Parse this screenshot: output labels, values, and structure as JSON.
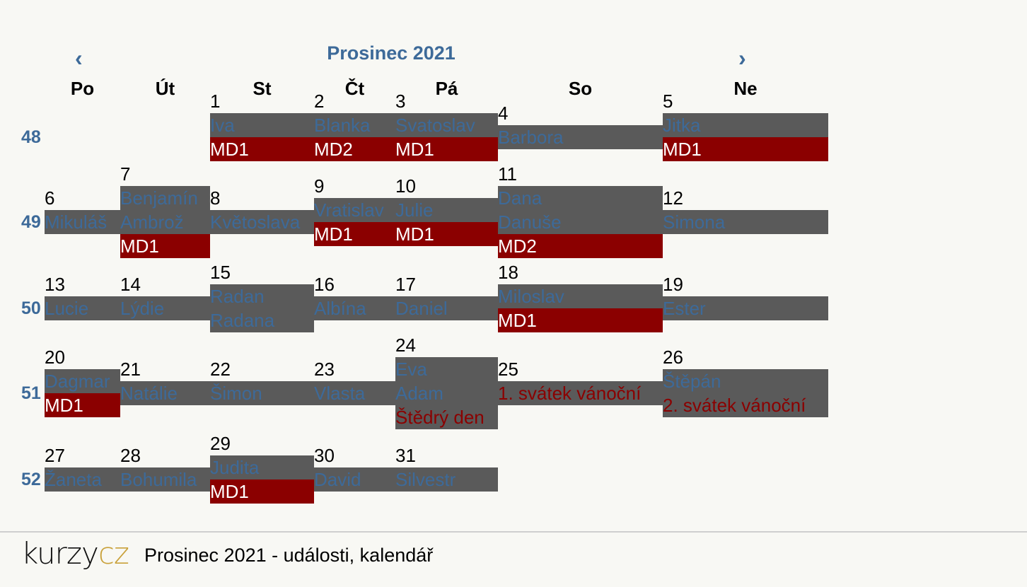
{
  "header": {
    "prev_icon": "‹",
    "next_icon": "›",
    "month_title": "Prosinec 2021"
  },
  "days_of_week": [
    "Po",
    "Út",
    "St",
    "Čt",
    "Pá",
    "So",
    "Ne"
  ],
  "weeks": [
    {
      "number": "48",
      "days": [
        null,
        null,
        {
          "date": "1",
          "names": [
            "Iva"
          ],
          "events": [
            "MD1"
          ]
        },
        {
          "date": "2",
          "names": [
            "Blanka"
          ],
          "events": [
            "MD2"
          ]
        },
        {
          "date": "3",
          "names": [
            "Svatoslav"
          ],
          "events": [
            "MD1"
          ]
        },
        {
          "date": "4",
          "names": [
            "Barbora"
          ],
          "events": []
        },
        {
          "date": "5",
          "names": [
            "Jitka"
          ],
          "events": [
            "MD1"
          ]
        }
      ]
    },
    {
      "number": "49",
      "days": [
        {
          "date": "6",
          "names": [
            "Mikuláš"
          ],
          "events": []
        },
        {
          "date": "7",
          "names": [
            "Benjamín",
            "Ambrož"
          ],
          "events": [
            "MD1"
          ]
        },
        {
          "date": "8",
          "names": [
            "Květoslava"
          ],
          "events": []
        },
        {
          "date": "9",
          "names": [
            "Vratislav"
          ],
          "events": [
            "MD1"
          ]
        },
        {
          "date": "10",
          "names": [
            "Julie"
          ],
          "events": [
            "MD1"
          ]
        },
        {
          "date": "11",
          "names": [
            "Dana",
            "Danuše"
          ],
          "events": [
            "MD2"
          ]
        },
        {
          "date": "12",
          "names": [
            "Simona"
          ],
          "events": []
        }
      ]
    },
    {
      "number": "50",
      "days": [
        {
          "date": "13",
          "names": [
            "Lucie"
          ],
          "events": []
        },
        {
          "date": "14",
          "names": [
            "Lýdie"
          ],
          "events": []
        },
        {
          "date": "15",
          "names": [
            "Radan",
            "Radana"
          ],
          "events": []
        },
        {
          "date": "16",
          "names": [
            "Albína"
          ],
          "events": []
        },
        {
          "date": "17",
          "names": [
            "Daniel"
          ],
          "events": []
        },
        {
          "date": "18",
          "names": [
            "Miloslav"
          ],
          "events": [
            "MD1"
          ]
        },
        {
          "date": "19",
          "names": [
            "Ester"
          ],
          "events": []
        }
      ]
    },
    {
      "number": "51",
      "days": [
        {
          "date": "20",
          "names": [
            "Dagmar"
          ],
          "events": [
            "MD1"
          ]
        },
        {
          "date": "21",
          "names": [
            "Natálie"
          ],
          "events": []
        },
        {
          "date": "22",
          "names": [
            "Šimon"
          ],
          "events": []
        },
        {
          "date": "23",
          "names": [
            "Vlasta"
          ],
          "events": []
        },
        {
          "date": "24",
          "names": [
            "Eva",
            "Adam"
          ],
          "holidays": [
            "Štědrý den"
          ],
          "events": []
        },
        {
          "date": "25",
          "names": [],
          "holidays": [
            "1. svátek vánoční"
          ],
          "events": []
        },
        {
          "date": "26",
          "names": [
            "Štěpán"
          ],
          "holidays": [
            "2. svátek vánoční"
          ],
          "events": []
        }
      ]
    },
    {
      "number": "52",
      "days": [
        {
          "date": "27",
          "names": [
            "Žaneta"
          ],
          "events": []
        },
        {
          "date": "28",
          "names": [
            "Bohumila"
          ],
          "events": []
        },
        {
          "date": "29",
          "names": [
            "Judita"
          ],
          "events": [
            "MD1"
          ]
        },
        {
          "date": "30",
          "names": [
            "David"
          ],
          "events": []
        },
        {
          "date": "31",
          "names": [
            "Silvestr"
          ],
          "events": []
        },
        null,
        null
      ]
    }
  ],
  "footer": {
    "logo_part1": "kurzy",
    "logo_part2": "cz",
    "text": "Prosinec 2021 - události, kalendář"
  },
  "colors": {
    "accent": "#3d6a99",
    "name_bg": "#5a5a5a",
    "event_bg": "#8b0000",
    "logo_accent": "#c9a13a"
  }
}
